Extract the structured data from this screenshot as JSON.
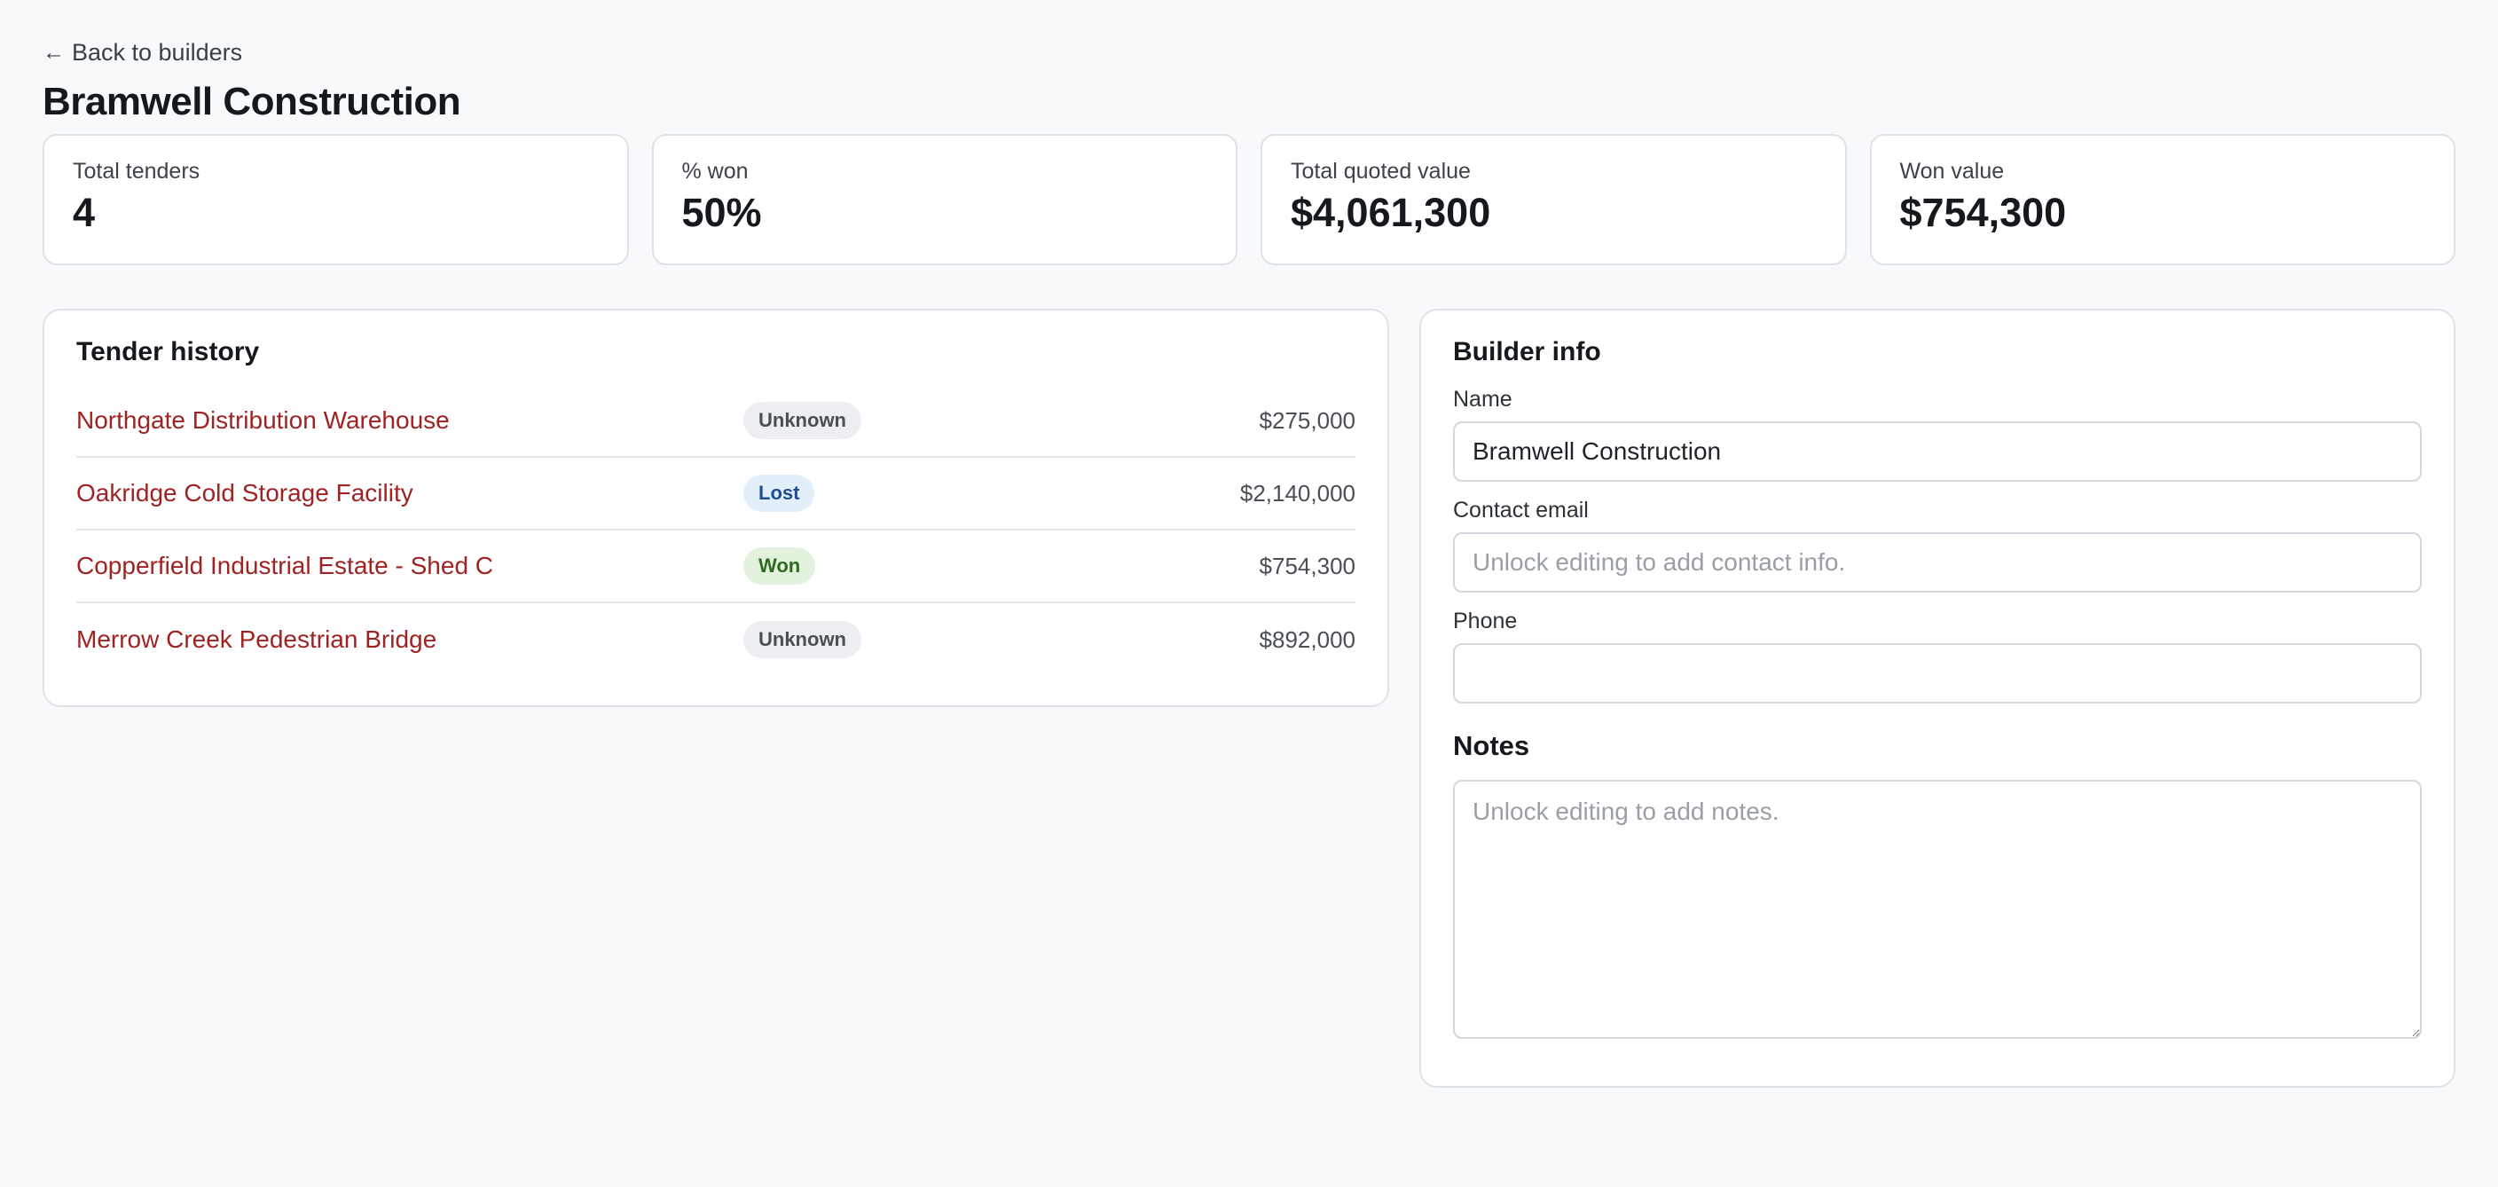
{
  "nav": {
    "back_arrow": "←",
    "back_label": "Back to builders"
  },
  "page_title": "Bramwell Construction",
  "stats": [
    {
      "label": "Total tenders",
      "value": "4"
    },
    {
      "label": "% won",
      "value": "50%"
    },
    {
      "label": "Total quoted value",
      "value": "$4,061,300"
    },
    {
      "label": "Won value",
      "value": "$754,300"
    }
  ],
  "tender_history": {
    "title": "Tender history",
    "rows": [
      {
        "name": "Northgate Distribution Warehouse",
        "status": "Unknown",
        "amount": "$275,000"
      },
      {
        "name": "Oakridge Cold Storage Facility",
        "status": "Lost",
        "amount": "$2,140,000"
      },
      {
        "name": "Copperfield Industrial Estate - Shed C",
        "status": "Won",
        "amount": "$754,300"
      },
      {
        "name": "Merrow Creek Pedestrian Bridge",
        "status": "Unknown",
        "amount": "$892,000"
      }
    ]
  },
  "builder_info": {
    "title": "Builder info",
    "name_label": "Name",
    "name_value": "Bramwell Construction",
    "email_label": "Contact email",
    "email_value": "",
    "email_placeholder": "Unlock editing to add contact info.",
    "phone_label": "Phone",
    "phone_value": "",
    "notes_title": "Notes",
    "notes_placeholder": "Unlock editing to add notes."
  },
  "colors": {
    "link": "#a02323",
    "badge_unknown_bg": "#eceef1",
    "badge_lost_bg": "#e3eefb",
    "badge_won_bg": "#e3f2dc"
  }
}
